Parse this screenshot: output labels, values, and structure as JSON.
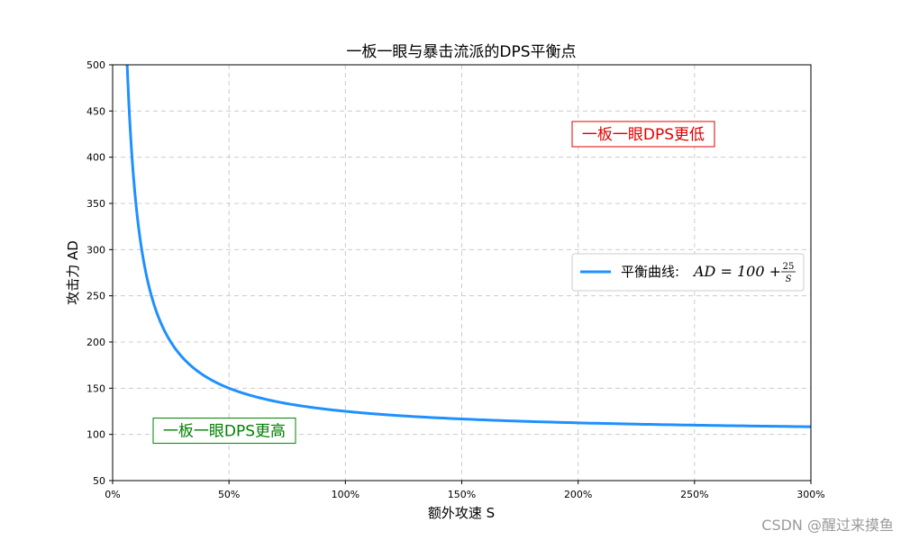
{
  "chart_data": {
    "type": "line",
    "title": "一板一眼与暴击流派的DPS平衡点",
    "xlabel": "额外攻速 S",
    "ylabel": "攻击力 AD",
    "xlim": [
      0,
      3
    ],
    "ylim": [
      50,
      500
    ],
    "x_ticks": [
      0,
      0.5,
      1,
      1.5,
      2,
      2.5,
      3
    ],
    "x_tick_labels": [
      "0%",
      "50%",
      "100%",
      "150%",
      "200%",
      "250%",
      "300%"
    ],
    "y_ticks": [
      50,
      100,
      150,
      200,
      250,
      300,
      350,
      400,
      450,
      500
    ],
    "y_tick_labels": [
      "50",
      "100",
      "150",
      "200",
      "250",
      "300",
      "350",
      "400",
      "450",
      "500"
    ],
    "grid": true,
    "legend_position": "center-right",
    "series": [
      {
        "name": "平衡曲线: AD = 100 + 25/S",
        "color": "#1e90ff",
        "x": [
          0.0625,
          0.075,
          0.1,
          0.125,
          0.15,
          0.2,
          0.25,
          0.3,
          0.4,
          0.5,
          0.6,
          0.75,
          1.0,
          1.25,
          1.5,
          1.75,
          2.0,
          2.25,
          2.5,
          2.75,
          3.0
        ],
        "y": [
          500,
          433.3,
          350,
          300,
          266.7,
          225,
          200,
          183.3,
          162.5,
          150,
          141.7,
          133.3,
          125,
          120,
          116.7,
          114.3,
          112.5,
          111.1,
          110,
          109.1,
          108.3
        ]
      }
    ],
    "legend": {
      "label_prefix": "平衡曲线:",
      "formula_lhs": "AD = 100 + ",
      "formula_num": "25",
      "formula_den": "S"
    },
    "annotations": [
      {
        "text": "一板一眼DPS更低",
        "x": 2.28,
        "y": 425,
        "color": "#e00000"
      },
      {
        "text": "一板一眼DPS更高",
        "x": 0.48,
        "y": 104,
        "color": "#008000"
      }
    ]
  },
  "watermark": "CSDN @醒过来摸鱼"
}
